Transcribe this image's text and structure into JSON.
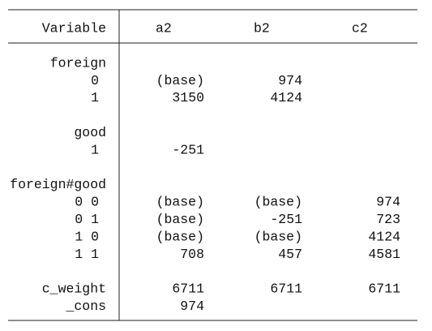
{
  "header": {
    "label": "Variable",
    "columns": [
      "a2",
      "b2",
      "c2"
    ]
  },
  "groups": [
    {
      "title": "foreign",
      "rows": [
        {
          "label": "0",
          "cells": [
            "(base)",
            974,
            null
          ]
        },
        {
          "label": "1",
          "cells": [
            3150,
            4124,
            null
          ]
        }
      ]
    },
    {
      "title": "good",
      "rows": [
        {
          "label": "1",
          "cells": [
            -251,
            null,
            null
          ]
        }
      ]
    },
    {
      "title": "foreign#good",
      "rows": [
        {
          "label": "0 0",
          "cells": [
            "(base)",
            "(base)",
            974
          ]
        },
        {
          "label": "0 1",
          "cells": [
            "(base)",
            -251,
            723
          ]
        },
        {
          "label": "1 0",
          "cells": [
            "(base)",
            "(base)",
            4124
          ]
        },
        {
          "label": "1 1",
          "cells": [
            708,
            457,
            4581
          ]
        }
      ]
    },
    {
      "rows": [
        {
          "label": "c_weight",
          "cells": [
            6711,
            6711,
            6711
          ]
        },
        {
          "label": "_cons",
          "cells": [
            974,
            null,
            null
          ]
        }
      ]
    }
  ]
}
